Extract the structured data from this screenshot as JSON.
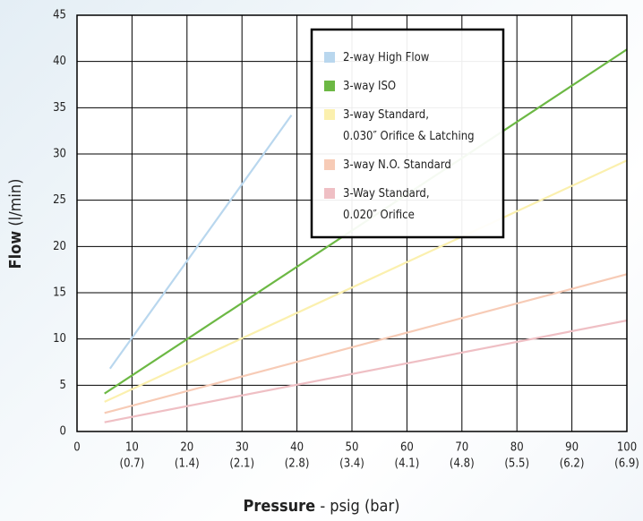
{
  "chart_data": {
    "type": "line",
    "x_label": {
      "bold": "Pressure",
      "rest": " - psig (bar)"
    },
    "y_label": {
      "bold": "Flow",
      "rest": " (l/min)"
    },
    "xlim": [
      0,
      100
    ],
    "xticks": [
      0,
      {
        "value": 10,
        "label": "10",
        "sublabel": "(0.7)"
      },
      {
        "value": 20,
        "label": "20",
        "sublabel": "(1.4)"
      },
      {
        "value": 30,
        "label": "30",
        "sublabel": "(2.1)"
      },
      {
        "value": 40,
        "label": "40",
        "sublabel": "(2.8)"
      },
      {
        "value": 50,
        "label": "50",
        "sublabel": "(3.4)"
      },
      {
        "value": 60,
        "label": "60",
        "sublabel": "(4.1)"
      },
      {
        "value": 70,
        "label": "70",
        "sublabel": "(4.8)"
      },
      {
        "value": 80,
        "label": "80",
        "sublabel": "(5.5)"
      },
      {
        "value": 90,
        "label": "90",
        "sublabel": "(6.2)"
      },
      {
        "value": 100,
        "label": "100",
        "sublabel": "(6.9)"
      }
    ],
    "ylim": [
      0,
      45
    ],
    "yticks": [
      0,
      5,
      10,
      15,
      20,
      25,
      30,
      35,
      40,
      45
    ],
    "grid": true,
    "series": [
      {
        "name": "2-way High Flow",
        "color": "#b9d7ee",
        "legend_text_color": "#c4c8cc",
        "x": [
          6,
          39
        ],
        "values": [
          6.8,
          34.2
        ]
      },
      {
        "name": "3-way ISO",
        "color": "#6cb844",
        "legend_text_color": "#222222",
        "x": [
          5,
          100
        ],
        "values": [
          4.1,
          41.3
        ]
      },
      {
        "name": "3-way Standard,\n0.030″ Orifice & Latching",
        "color": "#fbf0ae",
        "legend_text_color": "#c4c8cc",
        "x": [
          5,
          100
        ],
        "values": [
          3.2,
          29.3
        ]
      },
      {
        "name": "3-way N.O. Standard",
        "color": "#f7cbb6",
        "legend_text_color": "#c4c8cc",
        "x": [
          5,
          100
        ],
        "values": [
          2.0,
          17.0
        ]
      },
      {
        "name": "3-Way Standard,\n0.020″ Orifice",
        "color": "#efbfc4",
        "legend_text_color": "#c4c8cc",
        "x": [
          5,
          100
        ],
        "values": [
          1.0,
          12.0
        ]
      }
    ]
  }
}
